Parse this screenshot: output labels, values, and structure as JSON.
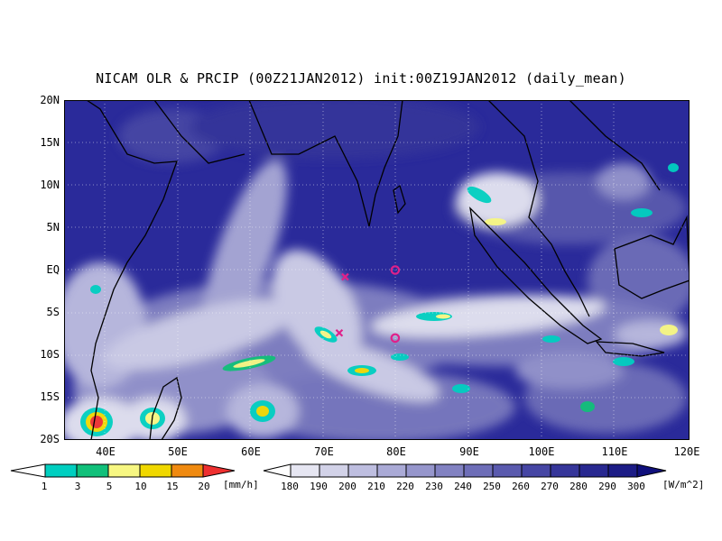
{
  "title": "NICAM OLR & PRCIP (00Z21JAN2012) init:00Z19JAN2012 (daily_mean)",
  "lat_labels": [
    "20N",
    "15N",
    "10N",
    "5N",
    "EQ",
    "5S",
    "10S",
    "15S",
    "20S"
  ],
  "lon_labels": [
    "40E",
    "50E",
    "60E",
    "70E",
    "80E",
    "90E",
    "100E",
    "110E",
    "120E"
  ],
  "precip_colorbar": {
    "labels": [
      "1",
      "3",
      "5",
      "10",
      "15",
      "20"
    ],
    "unit": "[mm/h]",
    "colors": [
      "#00cfc0",
      "#11c07a",
      "#f7f782",
      "#f0d800",
      "#f08a10",
      "#ee3030"
    ]
  },
  "olr_colorbar": {
    "labels": [
      "180",
      "190",
      "200",
      "210",
      "220",
      "230",
      "240",
      "250",
      "260",
      "270",
      "280",
      "290",
      "300"
    ],
    "unit": "[W/m^2]",
    "colors": [
      "#e6e6f2",
      "#d2d2e8",
      "#bebee0",
      "#aaaad6",
      "#9696cc",
      "#8282c2",
      "#6e6eb8",
      "#5a5aae",
      "#4646a4",
      "#36369a",
      "#282890",
      "#1c1c86",
      "#10107c"
    ]
  },
  "map": {
    "lon_range": [
      35,
      120
    ],
    "lat_range": [
      -20,
      20
    ],
    "background_color": "#2a2a9a",
    "markers": [
      {
        "type": "x",
        "lon": 73.2,
        "lat": -0.8,
        "color": "#e0208a"
      },
      {
        "type": "x",
        "lon": 72.4,
        "lat": -7.4,
        "color": "#e0208a"
      },
      {
        "type": "o",
        "lon": 80.0,
        "lat": 0.0,
        "color": "#e0208a"
      },
      {
        "type": "o",
        "lon": 80.0,
        "lat": -8.0,
        "color": "#e0208a"
      }
    ]
  }
}
